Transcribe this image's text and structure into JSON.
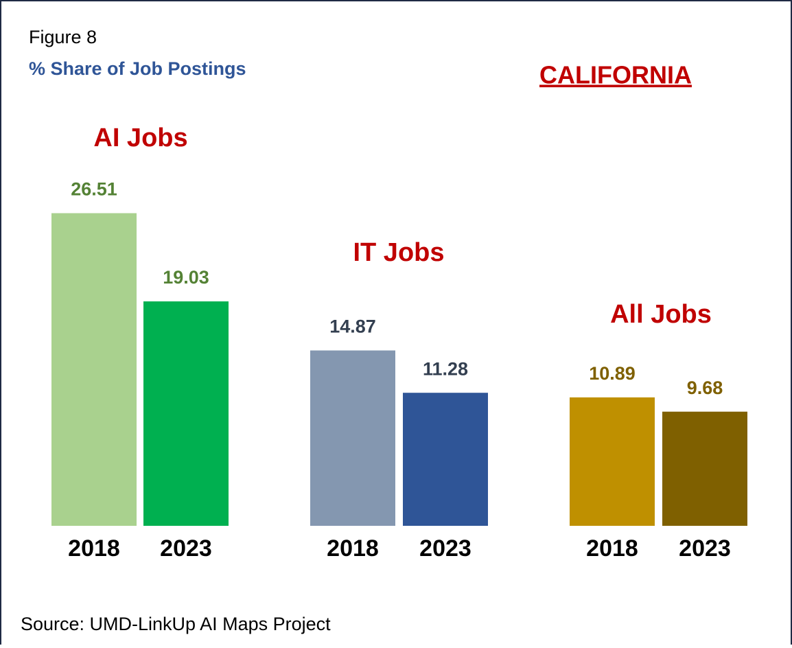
{
  "figure": "Figure 8",
  "heading": "% Share of Job Postings",
  "state": "CALIFORNIA",
  "source": "Source: UMD-LinkUp AI Maps Project",
  "chart_data": [
    {
      "type": "bar",
      "title": "AI Jobs",
      "categories": [
        "2018",
        "2023"
      ],
      "values": [
        26.51,
        19.03
      ],
      "colors": [
        "#a9d18e",
        "#00b050"
      ],
      "label_color": "#548235"
    },
    {
      "type": "bar",
      "title": "IT Jobs",
      "categories": [
        "2018",
        "2023"
      ],
      "values": [
        14.87,
        11.28
      ],
      "colors": [
        "#8497b0",
        "#2f5597"
      ],
      "label_color": "#333f50"
    },
    {
      "type": "bar",
      "title": "All Jobs",
      "categories": [
        "2018",
        "2023"
      ],
      "values": [
        10.89,
        9.68
      ],
      "colors": [
        "#bf9000",
        "#7f6000"
      ],
      "label_color": "#7f6000"
    }
  ]
}
